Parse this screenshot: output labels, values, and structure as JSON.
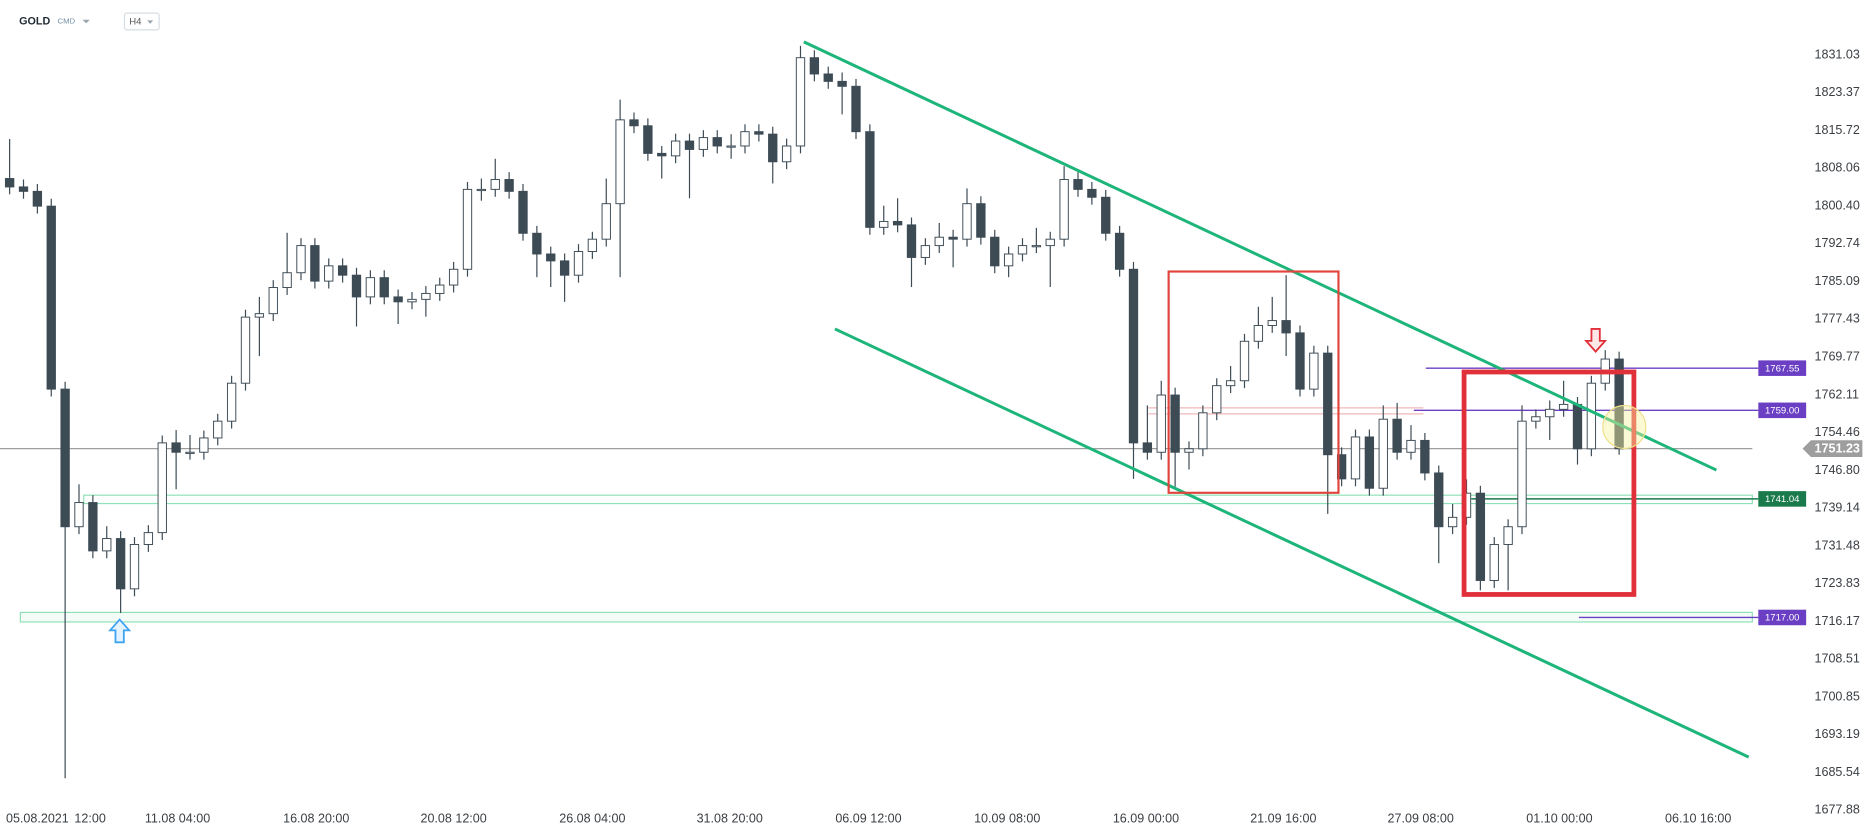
{
  "header": {
    "symbol": "GOLD",
    "market": "CMD",
    "interval": "H4"
  },
  "chart_data": {
    "type": "candlestick",
    "up_color": "#ffffff",
    "down_color": "#3d4b55",
    "outline_color": "#3d4b55",
    "xlim": [
      -0.69,
      125.6
    ],
    "ylim": [
      1673.5,
      1842.2
    ],
    "xticks": [
      {
        "value": 2,
        "label": "05.08.2021"
      },
      {
        "value": 5.8,
        "label": "12:00"
      },
      {
        "value": 12.1,
        "label": "11.08 04:00"
      },
      {
        "value": 22.1,
        "label": "16.08 20:00"
      },
      {
        "value": 32,
        "label": "20.08 12:00"
      },
      {
        "value": 42,
        "label": "26.08 04:00"
      },
      {
        "value": 51.9,
        "label": "31.08 20:00"
      },
      {
        "value": 61.9,
        "label": "06.09 12:00"
      },
      {
        "value": 71.9,
        "label": "10.09 08:00"
      },
      {
        "value": 81.9,
        "label": "16.09 00:00"
      },
      {
        "value": 91.8,
        "label": "21.09 16:00"
      },
      {
        "value": 101.7,
        "label": "27.09 08:00"
      },
      {
        "value": 111.7,
        "label": "01.10 00:00"
      },
      {
        "value": 121.7,
        "label": "06.10 16:00"
      }
    ],
    "yticks": [
      1831.03,
      1823.37,
      1815.72,
      1808.06,
      {
        "value": 1800.4,
        "label": "1800.40"
      },
      1792.74,
      1785.09,
      1777.43,
      1769.77,
      1762.11,
      1754.46,
      {
        "value": 1746.8,
        "label": "1746.80"
      },
      1739.14,
      1731.48,
      1723.83,
      1716.17,
      1708.51,
      1700.85,
      1693.19,
      1685.54,
      1677.88
    ],
    "last_price": 1751.23,
    "last_price_color": "#9e9e9e",
    "levels": [
      {
        "value": 1767.55,
        "color": "#6b3fc4"
      },
      {
        "value": 1759,
        "label": "1759.00",
        "color": "#6b3fc4"
      },
      {
        "value": 1741.04,
        "color": "#1a7a4c"
      },
      {
        "value": 1717,
        "label": "1717.00",
        "color": "#6b3fc4"
      }
    ],
    "candles": [
      [
        1806.0,
        1814.0,
        1802.8,
        1804.3
      ],
      [
        1804.3,
        1805.8,
        1801.9,
        1803.4
      ],
      [
        1803.4,
        1804.9,
        1798.9,
        1800.4
      ],
      [
        1800.4,
        1801.9,
        1761.8,
        1763.3
      ],
      [
        1763.3,
        1764.8,
        1684.4,
        1735.4
      ],
      [
        1735.4,
        1744.0,
        1733.9,
        1740.3
      ],
      [
        1740.3,
        1741.8,
        1729.0,
        1730.5
      ],
      [
        1730.5,
        1735.5,
        1729.0,
        1733.0
      ],
      [
        1733.0,
        1734.5,
        1717.9,
        1722.8
      ],
      [
        1722.8,
        1733.3,
        1721.3,
        1731.8
      ],
      [
        1731.8,
        1735.7,
        1730.3,
        1734.2
      ],
      [
        1734.2,
        1753.9,
        1732.7,
        1752.4
      ],
      [
        1752.4,
        1755.0,
        1743.0,
        1750.5
      ],
      [
        1750.5,
        1754.0,
        1749.0,
        1750.5
      ],
      [
        1750.5,
        1754.9,
        1749.0,
        1753.4
      ],
      [
        1753.4,
        1758.3,
        1751.9,
        1756.8
      ],
      [
        1756.8,
        1766.0,
        1755.3,
        1764.5
      ],
      [
        1764.5,
        1779.4,
        1763.0,
        1777.9
      ],
      [
        1777.9,
        1782.0,
        1770.0,
        1778.6
      ],
      [
        1778.6,
        1785.4,
        1777.1,
        1783.9
      ],
      [
        1783.9,
        1795.0,
        1782.4,
        1786.9
      ],
      [
        1786.9,
        1793.9,
        1785.4,
        1792.4
      ],
      [
        1792.4,
        1793.9,
        1783.7,
        1785.2
      ],
      [
        1785.2,
        1789.8,
        1783.7,
        1788.3
      ],
      [
        1788.3,
        1789.8,
        1784.9,
        1786.4
      ],
      [
        1786.4,
        1787.9,
        1776.0,
        1782.0
      ],
      [
        1782.0,
        1787.4,
        1780.5,
        1785.9
      ],
      [
        1785.9,
        1787.4,
        1780.5,
        1782.0
      ],
      [
        1782.0,
        1783.5,
        1776.5,
        1781.0
      ],
      [
        1781.0,
        1783.0,
        1779.5,
        1781.5
      ],
      [
        1781.5,
        1784.2,
        1778.0,
        1782.7
      ],
      [
        1782.7,
        1785.9,
        1781.2,
        1784.4
      ],
      [
        1784.4,
        1789.1,
        1782.9,
        1787.6
      ],
      [
        1787.6,
        1805.3,
        1786.1,
        1803.8
      ],
      [
        1803.8,
        1806.0,
        1801.5,
        1803.8
      ],
      [
        1803.8,
        1810.0,
        1802.3,
        1805.8
      ],
      [
        1805.8,
        1807.3,
        1801.9,
        1803.4
      ],
      [
        1803.4,
        1804.9,
        1793.4,
        1794.9
      ],
      [
        1794.9,
        1796.4,
        1786.0,
        1790.7
      ],
      [
        1790.7,
        1792.2,
        1784.0,
        1789.3
      ],
      [
        1789.3,
        1790.8,
        1781.0,
        1786.4
      ],
      [
        1786.4,
        1792.7,
        1784.9,
        1791.2
      ],
      [
        1791.2,
        1795.2,
        1789.7,
        1793.7
      ],
      [
        1793.7,
        1806.0,
        1792.2,
        1800.9
      ],
      [
        1800.9,
        1822.0,
        1786.0,
        1817.9
      ],
      [
        1817.9,
        1819.4,
        1815.2,
        1816.7
      ],
      [
        1816.7,
        1818.2,
        1809.6,
        1811.1
      ],
      [
        1811.1,
        1812.6,
        1806.0,
        1810.6
      ],
      [
        1810.6,
        1815.1,
        1809.1,
        1813.6
      ],
      [
        1813.6,
        1815.1,
        1802.0,
        1811.9
      ],
      [
        1811.9,
        1815.8,
        1810.4,
        1814.3
      ],
      [
        1814.3,
        1815.8,
        1811.1,
        1812.6
      ],
      [
        1812.6,
        1815.0,
        1810.0,
        1812.6
      ],
      [
        1812.6,
        1817.0,
        1811.1,
        1815.5
      ],
      [
        1815.5,
        1817.0,
        1813.5,
        1815.0
      ],
      [
        1815.0,
        1816.5,
        1805.0,
        1809.4
      ],
      [
        1809.4,
        1814.1,
        1807.9,
        1812.6
      ],
      [
        1812.6,
        1832.9,
        1811.1,
        1830.5
      ],
      [
        1830.5,
        1832.0,
        1825.7,
        1827.2
      ],
      [
        1827.2,
        1828.7,
        1824.2,
        1825.7
      ],
      [
        1825.7,
        1827.5,
        1819.0,
        1824.7
      ],
      [
        1824.7,
        1826.2,
        1814.0,
        1815.5
      ],
      [
        1815.5,
        1817.0,
        1794.6,
        1796.1
      ],
      [
        1796.1,
        1800.5,
        1794.6,
        1797.3
      ],
      [
        1797.3,
        1802.0,
        1795.1,
        1796.6
      ],
      [
        1796.6,
        1798.1,
        1784.0,
        1790.0
      ],
      [
        1790.0,
        1793.9,
        1788.5,
        1792.4
      ],
      [
        1792.4,
        1797.0,
        1790.9,
        1794.1
      ],
      [
        1794.1,
        1795.6,
        1788.0,
        1793.7
      ],
      [
        1793.7,
        1804.0,
        1792.2,
        1800.9
      ],
      [
        1800.9,
        1802.4,
        1792.6,
        1794.1
      ],
      [
        1794.1,
        1795.6,
        1786.8,
        1788.3
      ],
      [
        1788.3,
        1792.2,
        1786.0,
        1790.7
      ],
      [
        1790.7,
        1793.9,
        1789.2,
        1792.4
      ],
      [
        1792.4,
        1796.0,
        1790.9,
        1792.4
      ],
      [
        1792.4,
        1795.2,
        1784.0,
        1793.7
      ],
      [
        1793.7,
        1808.5,
        1792.2,
        1805.8
      ],
      [
        1805.8,
        1807.3,
        1802.3,
        1803.8
      ],
      [
        1803.8,
        1805.3,
        1800.7,
        1802.2
      ],
      [
        1802.2,
        1803.7,
        1793.4,
        1794.9
      ],
      [
        1794.9,
        1796.4,
        1786.1,
        1787.6
      ],
      [
        1787.6,
        1789.1,
        1745.1,
        1752.4
      ],
      [
        1752.4,
        1760.0,
        1749.0,
        1750.5
      ],
      [
        1750.5,
        1765.0,
        1749.0,
        1762.1
      ],
      [
        1762.1,
        1763.6,
        1743.5,
        1750.5
      ],
      [
        1750.5,
        1752.7,
        1747.0,
        1751.2
      ],
      [
        1751.2,
        1760.0,
        1749.7,
        1758.5
      ],
      [
        1758.5,
        1765.5,
        1757.0,
        1764.0
      ],
      [
        1764.0,
        1768.0,
        1762.5,
        1765.0
      ],
      [
        1765.0,
        1774.5,
        1763.5,
        1773.0
      ],
      [
        1773.0,
        1780.0,
        1771.5,
        1776.2
      ],
      [
        1776.2,
        1782.0,
        1774.7,
        1777.2
      ],
      [
        1777.2,
        1786.4,
        1770.0,
        1774.7
      ],
      [
        1774.7,
        1776.2,
        1761.8,
        1763.3
      ],
      [
        1763.3,
        1772.1,
        1761.8,
        1770.6
      ],
      [
        1770.6,
        1772.1,
        1738.0,
        1750.0
      ],
      [
        1750.0,
        1751.5,
        1743.6,
        1745.1
      ],
      [
        1745.1,
        1755.1,
        1743.6,
        1753.6
      ],
      [
        1753.6,
        1755.1,
        1741.7,
        1743.2
      ],
      [
        1743.2,
        1760.0,
        1741.7,
        1757.2
      ],
      [
        1757.2,
        1760.5,
        1749.0,
        1750.5
      ],
      [
        1750.5,
        1756.0,
        1749.0,
        1752.9
      ],
      [
        1752.9,
        1754.4,
        1744.8,
        1746.3
      ],
      [
        1746.3,
        1747.8,
        1728.0,
        1735.4
      ],
      [
        1735.4,
        1740.0,
        1733.9,
        1737.3
      ],
      [
        1737.3,
        1745.0,
        1735.8,
        1742.2
      ],
      [
        1742.2,
        1743.7,
        1722.5,
        1724.5
      ],
      [
        1724.5,
        1733.3,
        1723.0,
        1731.8
      ],
      [
        1731.8,
        1736.9,
        1722.5,
        1735.4
      ],
      [
        1735.4,
        1760.0,
        1733.9,
        1756.8
      ],
      [
        1756.8,
        1759.2,
        1755.3,
        1757.7
      ],
      [
        1757.7,
        1761.0,
        1753.0,
        1759.2
      ],
      [
        1759.2,
        1765.0,
        1757.7,
        1760.2
      ],
      [
        1760.2,
        1761.7,
        1748.0,
        1751.2
      ],
      [
        1751.2,
        1766.0,
        1749.7,
        1764.5
      ],
      [
        1764.5,
        1771.2,
        1763.0,
        1769.4
      ],
      [
        1769.4,
        1770.9,
        1750.0,
        1751.2
      ]
    ]
  }
}
